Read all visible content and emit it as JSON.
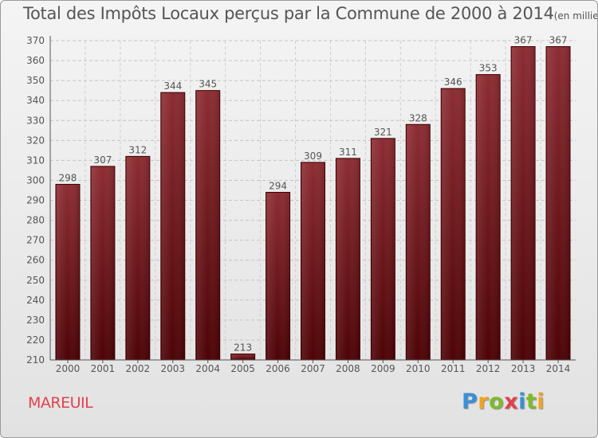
{
  "title": "Total des Impôts Locaux perçus par la Commune de 2000 à 2014",
  "unit": "(en milliers d'€)",
  "commune": "MAREUIL",
  "logo": {
    "letters": [
      "P",
      "r",
      "o",
      "x",
      "i",
      "t",
      "i"
    ],
    "colors": [
      "#3b8fd6",
      "#f2a21f",
      "#7dbb2b",
      "#e2424b",
      "#3b8fd6",
      "#7dbb2b",
      "#f2a21f"
    ]
  },
  "chart_data": {
    "type": "bar",
    "categories": [
      "2000",
      "2001",
      "2002",
      "2003",
      "2004",
      "2005",
      "2006",
      "2007",
      "2008",
      "2009",
      "2010",
      "2011",
      "2012",
      "2013",
      "2014"
    ],
    "values": [
      298,
      307,
      312,
      344,
      345,
      213,
      294,
      309,
      311,
      321,
      328,
      346,
      353,
      367,
      367
    ],
    "ylim": [
      210,
      370
    ],
    "yticks": [
      210,
      220,
      230,
      240,
      250,
      260,
      270,
      280,
      290,
      300,
      310,
      320,
      330,
      340,
      350,
      360,
      370
    ],
    "grid": true,
    "bar_color": "#7a1d22"
  }
}
